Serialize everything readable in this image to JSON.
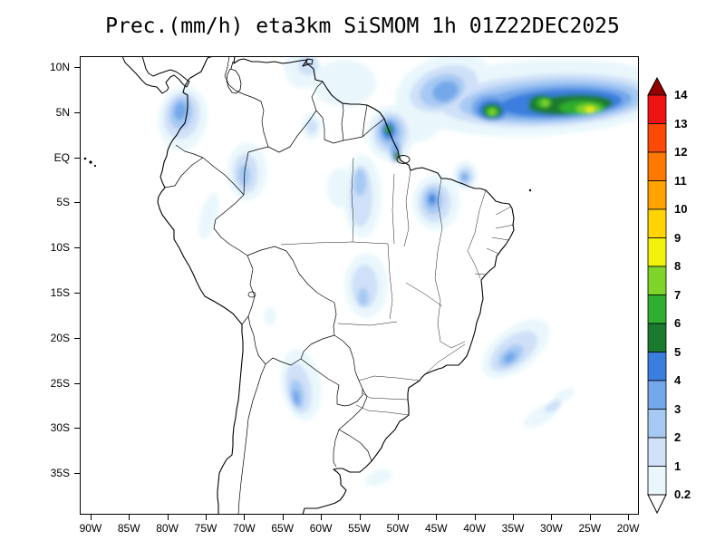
{
  "chart_data": {
    "type": "heatmap",
    "title": "Prec.(mm/h) eta3km SiSMOM 1h 01Z22DEC2025",
    "variable": "Prec.",
    "units": "mm/h",
    "model": "eta3km SiSMOM",
    "forecast_hour": "1h",
    "valid_time": "01Z22DEC2025",
    "lon_range": [
      -91.4,
      -18.6
    ],
    "lat_range": [
      -39.6,
      11.2
    ],
    "lat_tick_labels": [
      "10N",
      "5N",
      "EQ",
      "5S",
      "10S",
      "15S",
      "20S",
      "25S",
      "30S",
      "35S"
    ],
    "lon_tick_labels": [
      "90W",
      "85W",
      "80W",
      "75W",
      "70W",
      "65W",
      "60W",
      "55W",
      "50W",
      "45W",
      "40W",
      "35W",
      "30W",
      "25W",
      "20W"
    ],
    "levels": [
      0.2,
      1,
      2,
      3,
      4,
      5,
      6,
      7,
      8,
      9,
      10,
      11,
      12,
      13,
      14
    ],
    "colorbar": {
      "tick_labels_top_to_bottom": [
        "14",
        "13",
        "12",
        "11",
        "10",
        "9",
        "8",
        "7",
        "6",
        "5",
        "4",
        "3",
        "2",
        "1",
        "0.2"
      ],
      "segment_colors_low_to_high": [
        "#e9f7fc",
        "#cfe0f8",
        "#a6c9f3",
        "#74a8ea",
        "#3a7ede",
        "#1a7a2e",
        "#2fae2f",
        "#7fd42a",
        "#f2f20c",
        "#ffd400",
        "#ffa300",
        "#ff7800",
        "#fb4a07",
        "#ee1414"
      ],
      "over_color": "#930000",
      "under_color": "#ffffff"
    },
    "region_format": [
      "lon",
      "lat",
      "rx_deg",
      "ry_deg",
      "rotation_deg",
      "level_mm_h"
    ],
    "precip_regions": [
      [
        -31.5,
        6.6,
        18,
        4.2,
        -3,
        0.2
      ],
      [
        -44,
        7.8,
        6.5,
        3.4,
        -20,
        0.2
      ],
      [
        -47.5,
        4.5,
        3.5,
        2.8,
        -30,
        0.2
      ],
      [
        -57,
        8.2,
        4.2,
        2.6,
        0,
        0.2
      ],
      [
        -62.4,
        9.8,
        2.4,
        2.2,
        0,
        0.2
      ],
      [
        -50.9,
        2.6,
        3.1,
        3.1,
        0,
        0.2
      ],
      [
        -61.2,
        3.4,
        1.3,
        1.5,
        0,
        0.2
      ],
      [
        -30.5,
        6.3,
        14,
        2.9,
        -3,
        1
      ],
      [
        -44,
        7.6,
        4.6,
        2.4,
        -20,
        1
      ],
      [
        -50.9,
        2.7,
        2.3,
        2.3,
        0,
        1
      ],
      [
        -61.7,
        10.2,
        1.3,
        1.1,
        0,
        1
      ],
      [
        -61.2,
        3.4,
        0.7,
        0.8,
        0,
        1
      ],
      [
        -30,
        6.2,
        12,
        2.4,
        -3,
        2
      ],
      [
        -44.2,
        7.4,
        3,
        1.7,
        -20,
        2
      ],
      [
        -51.0,
        2.8,
        1.7,
        1.7,
        0,
        2
      ],
      [
        -50.3,
        0.9,
        0.8,
        1.5,
        0,
        2
      ],
      [
        -29.5,
        6.1,
        10,
        1.9,
        -3,
        3
      ],
      [
        -37.7,
        5.5,
        2.7,
        1.5,
        0,
        3
      ],
      [
        -43.8,
        7.3,
        1.7,
        1.1,
        -20,
        3
      ],
      [
        -51.1,
        2.9,
        1.1,
        1.2,
        0,
        3
      ],
      [
        -50.3,
        0.9,
        0.5,
        0.9,
        0,
        3
      ],
      [
        -28.8,
        6.0,
        8,
        1.5,
        -3,
        4
      ],
      [
        -37.7,
        5.3,
        1.9,
        1.1,
        0,
        4
      ],
      [
        -51.2,
        3.0,
        0.75,
        0.85,
        0,
        4
      ],
      [
        -27.5,
        5.8,
        5.5,
        1.1,
        -3,
        5
      ],
      [
        -37.7,
        5.15,
        1.3,
        0.8,
        0,
        5
      ],
      [
        -31.2,
        6.1,
        1.7,
        0.8,
        0,
        5
      ],
      [
        -51.2,
        3.05,
        0.5,
        0.55,
        0,
        5
      ],
      [
        -50.1,
        0.1,
        0.4,
        0.45,
        0,
        5
      ],
      [
        -26.0,
        5.5,
        3.0,
        0.8,
        0,
        6
      ],
      [
        -37.7,
        5.05,
        0.85,
        0.55,
        0,
        6
      ],
      [
        -31.0,
        6.05,
        1.0,
        0.55,
        0,
        6
      ],
      [
        -51.3,
        3.15,
        0.3,
        0.35,
        0,
        6
      ],
      [
        -25.2,
        5.35,
        1.6,
        0.55,
        0,
        7
      ],
      [
        -37.7,
        5.0,
        0.5,
        0.38,
        0,
        7
      ],
      [
        -30.8,
        6.0,
        0.55,
        0.38,
        0,
        7
      ],
      [
        -25.0,
        5.3,
        0.6,
        0.3,
        0,
        8
      ],
      [
        -78.0,
        4.3,
        3.2,
        3.6,
        10,
        0.2
      ],
      [
        -78.1,
        4.6,
        2.3,
        2.6,
        10,
        1
      ],
      [
        -78.2,
        4.9,
        1.5,
        1.8,
        10,
        2
      ],
      [
        -78.3,
        5.1,
        0.8,
        1.0,
        10,
        3
      ],
      [
        -69.6,
        -1.6,
        2.6,
        3.2,
        0,
        0.2
      ],
      [
        -69.8,
        -1.8,
        1.6,
        2.2,
        0,
        1
      ],
      [
        -70.0,
        -2.0,
        0.8,
        1.2,
        0,
        2
      ],
      [
        -54.6,
        -4.3,
        2.5,
        4.6,
        0,
        0.2
      ],
      [
        -54.8,
        -4.3,
        1.5,
        3.4,
        0,
        1
      ],
      [
        -54.9,
        -2.8,
        0.8,
        1.5,
        0,
        2
      ],
      [
        -57.6,
        -3.4,
        1.6,
        2.2,
        0,
        0.2
      ],
      [
        -45.0,
        -5.0,
        3.1,
        3.1,
        0,
        0.2
      ],
      [
        -45.2,
        -5.0,
        2.1,
        2.2,
        0,
        1
      ],
      [
        -45.4,
        -4.8,
        1.3,
        1.5,
        0,
        2
      ],
      [
        -45.5,
        -4.7,
        0.7,
        0.8,
        0,
        3
      ],
      [
        -45.5,
        -4.6,
        0.38,
        0.45,
        0,
        4
      ],
      [
        -41.2,
        -2.0,
        1.6,
        1.6,
        0,
        0.2
      ],
      [
        -41.2,
        -2.1,
        1.1,
        1.1,
        0,
        1
      ],
      [
        -41.3,
        -2.2,
        0.7,
        0.7,
        0,
        2
      ],
      [
        -41.3,
        -2.2,
        0.36,
        0.36,
        0,
        3
      ],
      [
        -74.6,
        -6.5,
        1.1,
        2.6,
        15,
        0.2
      ],
      [
        -54.1,
        -14.2,
        2.8,
        3.6,
        0,
        0.2
      ],
      [
        -54.3,
        -14.3,
        1.7,
        2.4,
        0,
        1
      ],
      [
        -54.5,
        -15.5,
        0.7,
        1.0,
        0,
        2
      ],
      [
        -66.6,
        -17.6,
        0.8,
        1.0,
        0,
        0.2
      ],
      [
        -62.6,
        -25.2,
        2.6,
        4.0,
        -10,
        0.2
      ],
      [
        -62.9,
        -25.6,
        1.6,
        2.8,
        -10,
        1
      ],
      [
        -63.1,
        -26.2,
        0.9,
        1.6,
        -10,
        2
      ],
      [
        -63.2,
        -26.6,
        0.45,
        0.9,
        -10,
        3
      ],
      [
        -34.6,
        -21.2,
        5.2,
        2.3,
        -38,
        0.2
      ],
      [
        -34.9,
        -21.5,
        3.6,
        1.6,
        -38,
        1
      ],
      [
        -35.3,
        -22.0,
        1.9,
        0.9,
        -38,
        2
      ],
      [
        -35.4,
        -22.2,
        0.9,
        0.5,
        -38,
        3
      ],
      [
        -31.3,
        -28.6,
        2.6,
        0.9,
        -30,
        0.2
      ],
      [
        -28.4,
        -26.4,
        1.6,
        0.6,
        -30,
        0.2
      ],
      [
        -29.8,
        -27.6,
        1.2,
        0.5,
        -30,
        1
      ],
      [
        -52.5,
        -35.5,
        1.8,
        0.8,
        -20,
        0.2
      ]
    ]
  }
}
